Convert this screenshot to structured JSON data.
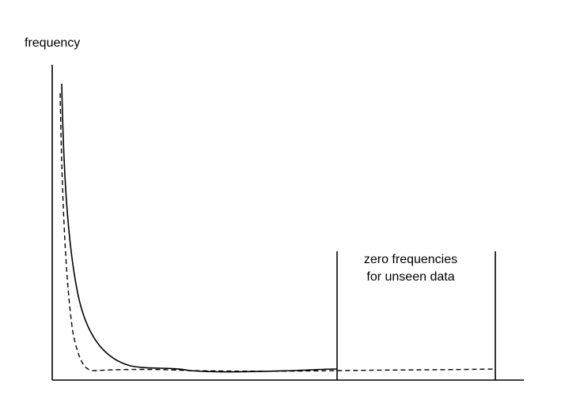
{
  "diagram": {
    "y_axis_label": "frequency",
    "region_label_line1": "zero frequencies",
    "region_label_line2": "for unseen data",
    "colors": {
      "line": "#000000",
      "background": "#ffffff"
    },
    "curves": {
      "observed": "solid",
      "smoothed": "dashed"
    }
  }
}
